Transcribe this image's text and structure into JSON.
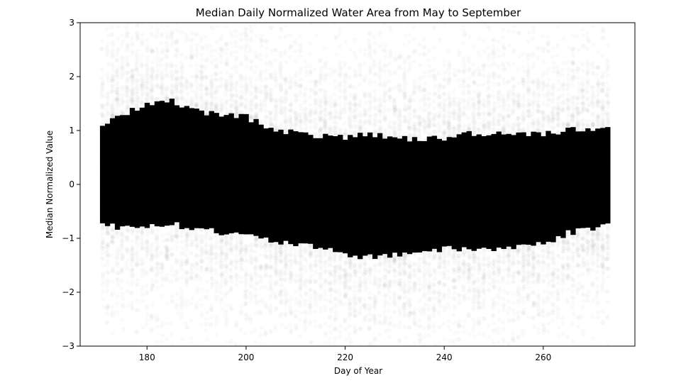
{
  "chart_data": {
    "type": "scatter",
    "title": "Median Daily Normalized Water Area from May to September",
    "xlabel": "Day of Year",
    "ylabel": "Median Normalized Value",
    "xlim": [
      166.5,
      278.5
    ],
    "ylim": [
      -3,
      3
    ],
    "x_ticks": [
      180,
      200,
      220,
      240,
      260
    ],
    "y_ticks": [
      -3,
      -2,
      -1,
      0,
      1,
      2,
      3
    ],
    "x_tick_labels": [
      "180",
      "200",
      "220",
      "240",
      "260"
    ],
    "y_tick_labels": [
      "−3",
      "−2",
      "−1",
      "0",
      "1",
      "2",
      "3"
    ],
    "marker_color": "#000000",
    "marker_alpha": 0.02,
    "grid": false,
    "x_range_of_days": [
      171,
      273
    ],
    "dense_band_by_day": [
      {
        "x": 171,
        "lower": -0.75,
        "upper": 1.1
      },
      {
        "x": 175,
        "lower": -0.8,
        "upper": 1.3
      },
      {
        "x": 180,
        "lower": -0.75,
        "upper": 1.5
      },
      {
        "x": 185,
        "lower": -0.75,
        "upper": 1.55
      },
      {
        "x": 190,
        "lower": -0.8,
        "upper": 1.35
      },
      {
        "x": 195,
        "lower": -0.9,
        "upper": 1.3
      },
      {
        "x": 200,
        "lower": -0.95,
        "upper": 1.25
      },
      {
        "x": 205,
        "lower": -1.05,
        "upper": 1.05
      },
      {
        "x": 210,
        "lower": -1.1,
        "upper": 0.95
      },
      {
        "x": 215,
        "lower": -1.2,
        "upper": 0.9
      },
      {
        "x": 220,
        "lower": -1.3,
        "upper": 0.85
      },
      {
        "x": 225,
        "lower": -1.35,
        "upper": 0.95
      },
      {
        "x": 230,
        "lower": -1.3,
        "upper": 0.85
      },
      {
        "x": 235,
        "lower": -1.25,
        "upper": 0.85
      },
      {
        "x": 240,
        "lower": -1.2,
        "upper": 0.85
      },
      {
        "x": 245,
        "lower": -1.2,
        "upper": 0.95
      },
      {
        "x": 250,
        "lower": -1.2,
        "upper": 0.95
      },
      {
        "x": 255,
        "lower": -1.15,
        "upper": 0.95
      },
      {
        "x": 260,
        "lower": -1.1,
        "upper": 0.95
      },
      {
        "x": 265,
        "lower": -0.9,
        "upper": 1.0
      },
      {
        "x": 270,
        "lower": -0.8,
        "upper": 1.05
      },
      {
        "x": 273,
        "lower": -0.75,
        "upper": 1.1
      }
    ]
  }
}
